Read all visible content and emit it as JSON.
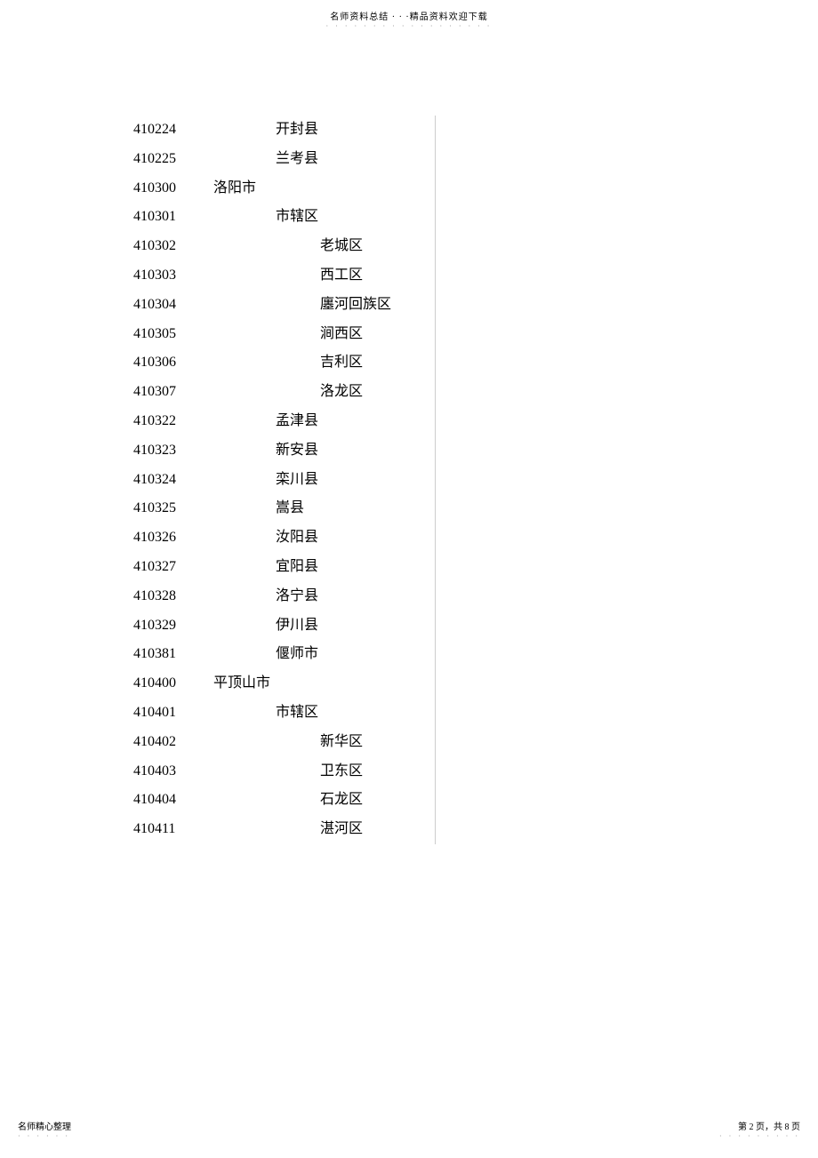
{
  "header": {
    "text": "名师资料总结 · · ·精品资料欢迎下载",
    "dots": "·  ·  ·  ·  ·  ·  ·  ·  ·  ·  ·  ·  ·  ·  ·  ·  ·  ·"
  },
  "rows": [
    {
      "code": "410224",
      "city": "",
      "sub": "开封县",
      "dist": ""
    },
    {
      "code": "410225",
      "city": "",
      "sub": "兰考县",
      "dist": ""
    },
    {
      "code": "410300",
      "city": "洛阳市",
      "sub": "",
      "dist": ""
    },
    {
      "code": "410301",
      "city": "",
      "sub": "市辖区",
      "dist": ""
    },
    {
      "code": "410302",
      "city": "",
      "sub": "",
      "dist": "老城区"
    },
    {
      "code": "410303",
      "city": "",
      "sub": "",
      "dist": "西工区"
    },
    {
      "code": "410304",
      "city": "",
      "sub": "",
      "dist": "廛河回族区"
    },
    {
      "code": "410305",
      "city": "",
      "sub": "",
      "dist": "涧西区"
    },
    {
      "code": "410306",
      "city": "",
      "sub": "",
      "dist": "吉利区"
    },
    {
      "code": "410307",
      "city": "",
      "sub": "",
      "dist": "洛龙区"
    },
    {
      "code": "410322",
      "city": "",
      "sub": "孟津县",
      "dist": ""
    },
    {
      "code": "410323",
      "city": "",
      "sub": "新安县",
      "dist": ""
    },
    {
      "code": "410324",
      "city": "",
      "sub": "栾川县",
      "dist": ""
    },
    {
      "code": "410325",
      "city": "",
      "sub": "嵩县",
      "dist": ""
    },
    {
      "code": "410326",
      "city": "",
      "sub": "汝阳县",
      "dist": ""
    },
    {
      "code": "410327",
      "city": "",
      "sub": "宜阳县",
      "dist": ""
    },
    {
      "code": "410328",
      "city": "",
      "sub": "洛宁县",
      "dist": ""
    },
    {
      "code": "410329",
      "city": "",
      "sub": "伊川县",
      "dist": ""
    },
    {
      "code": "410381",
      "city": "",
      "sub": "偃师市",
      "dist": ""
    },
    {
      "code": "410400",
      "city": "平顶山市",
      "sub": "",
      "dist": ""
    },
    {
      "code": "410401",
      "city": "",
      "sub": "市辖区",
      "dist": ""
    },
    {
      "code": "410402",
      "city": "",
      "sub": "",
      "dist": "新华区"
    },
    {
      "code": "410403",
      "city": "",
      "sub": "",
      "dist": "卫东区"
    },
    {
      "code": "410404",
      "city": "",
      "sub": "",
      "dist": "石龙区"
    },
    {
      "code": "410411",
      "city": "",
      "sub": "",
      "dist": "湛河区"
    }
  ],
  "footer": {
    "left": "名师精心整理",
    "left_dots": "· · · · · ·",
    "right": "第 2 页，共 8 页",
    "right_dots": "· · · · · · · · ·"
  }
}
